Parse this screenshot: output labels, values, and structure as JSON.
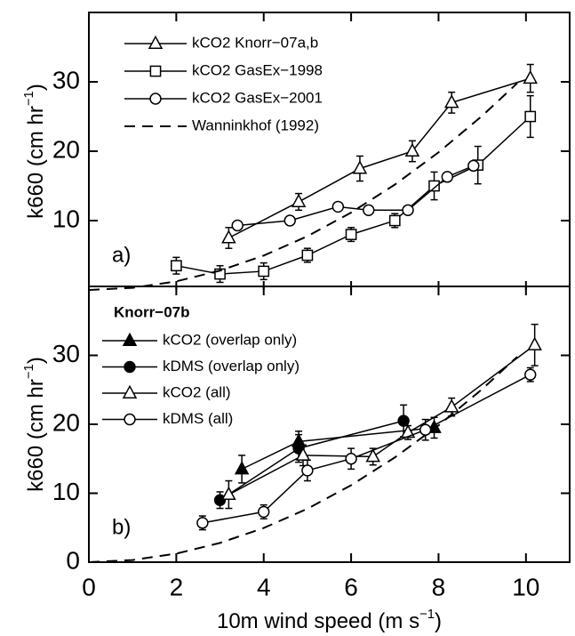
{
  "chart_data": [
    {
      "type": "line",
      "panel_label": "a)",
      "y_label": {
        "text": "k660 (cm hr",
        "sup": "−1",
        "end": ")"
      },
      "xlim": [
        0,
        11
      ],
      "ylim": [
        0,
        40
      ],
      "yticks": [
        10,
        20,
        30
      ],
      "series": [
        {
          "name": "kCO2 Knorr−07a,b",
          "marker": "triangle",
          "filled": false,
          "color": "#000000",
          "x": [
            3.2,
            4.8,
            6.2,
            7.4,
            8.3,
            10.1
          ],
          "values": [
            7.5,
            12.7,
            17.5,
            20,
            27,
            30.5
          ],
          "errors": [
            1.5,
            1.2,
            1.8,
            1.5,
            1.5,
            2
          ]
        },
        {
          "name": "kCO2 GasEx−1998",
          "marker": "square",
          "filled": false,
          "color": "#000000",
          "x": [
            2,
            3,
            4,
            5,
            6,
            7,
            7.9,
            8.9,
            10.1
          ],
          "values": [
            3.5,
            2.3,
            2.7,
            5,
            8,
            10,
            15,
            18,
            25
          ],
          "errors": [
            1.2,
            1.2,
            1.2,
            1,
            1,
            1,
            2,
            2.7,
            3
          ]
        },
        {
          "name": "kCO2 GasEx−2001",
          "marker": "circle",
          "filled": false,
          "color": "#000000",
          "x": [
            3.4,
            4.6,
            5.7,
            6.4,
            7.3,
            8.2,
            8.8
          ],
          "values": [
            9.3,
            10,
            12,
            11.5,
            11.5,
            16.3,
            17.9
          ]
        },
        {
          "name": "Wanninkhof (1992)",
          "dash": true,
          "color": "#000000",
          "x": [
            0,
            1,
            2,
            3,
            4,
            5,
            6,
            7,
            8,
            9,
            9.8
          ],
          "values": [
            0,
            0.31,
            1.24,
            2.79,
            4.96,
            7.75,
            11.16,
            15.19,
            19.84,
            25.11,
            29.8
          ]
        }
      ]
    },
    {
      "type": "line",
      "panel_label": "b)",
      "legend_title": "Knorr−07b",
      "y_label": {
        "text": "k660 (cm hr",
        "sup": "−1",
        "end": ")"
      },
      "x_label": {
        "text": "10m wind speed (m s",
        "sup": "−1",
        "end": ")"
      },
      "xlim": [
        0,
        11
      ],
      "ylim": [
        0,
        40
      ],
      "xticks": [
        0,
        2,
        4,
        6,
        8,
        10
      ],
      "yticks": [
        0,
        10,
        20,
        30
      ],
      "series": [
        {
          "name": "kCO2 (overlap only)",
          "marker": "triangle",
          "filled": true,
          "color": "#000000",
          "x": [
            3.5,
            4.8,
            7.9
          ],
          "values": [
            13.5,
            17.5,
            19.5
          ],
          "errors": [
            2,
            1.5,
            1.5
          ]
        },
        {
          "name": "kDMS (overlap only)",
          "marker": "circle",
          "filled": true,
          "color": "#000000",
          "x": [
            3,
            4.8,
            7.2
          ],
          "values": [
            9,
            16.5,
            20.5
          ],
          "errors": [
            1.2,
            2,
            2.3
          ]
        },
        {
          "name": "kCO2 (all)",
          "marker": "triangle",
          "filled": false,
          "color": "#000000",
          "x": [
            3.2,
            4.9,
            6.5,
            7.3,
            8.3,
            10.2
          ],
          "values": [
            9.8,
            15.5,
            15.3,
            18.8,
            22.5,
            31.5
          ],
          "errors": [
            2,
            1.5,
            1.2,
            1,
            1.3,
            3
          ]
        },
        {
          "name": "kDMS (all)",
          "marker": "circle",
          "filled": false,
          "color": "#000000",
          "x": [
            2.6,
            4,
            5,
            6,
            7.7,
            10.1
          ],
          "values": [
            5.7,
            7.3,
            13.3,
            15,
            19.2,
            27.2
          ],
          "errors": [
            1,
            1,
            1.5,
            1.5,
            1.5,
            1
          ]
        },
        {
          "dash": true,
          "color": "#000000",
          "x": [
            0,
            1,
            2,
            3,
            4,
            5,
            6,
            7,
            8,
            9,
            9.8
          ],
          "values": [
            0,
            0.31,
            1.24,
            2.79,
            4.96,
            7.75,
            11.16,
            15.19,
            19.84,
            25.11,
            29.8
          ]
        }
      ]
    }
  ]
}
